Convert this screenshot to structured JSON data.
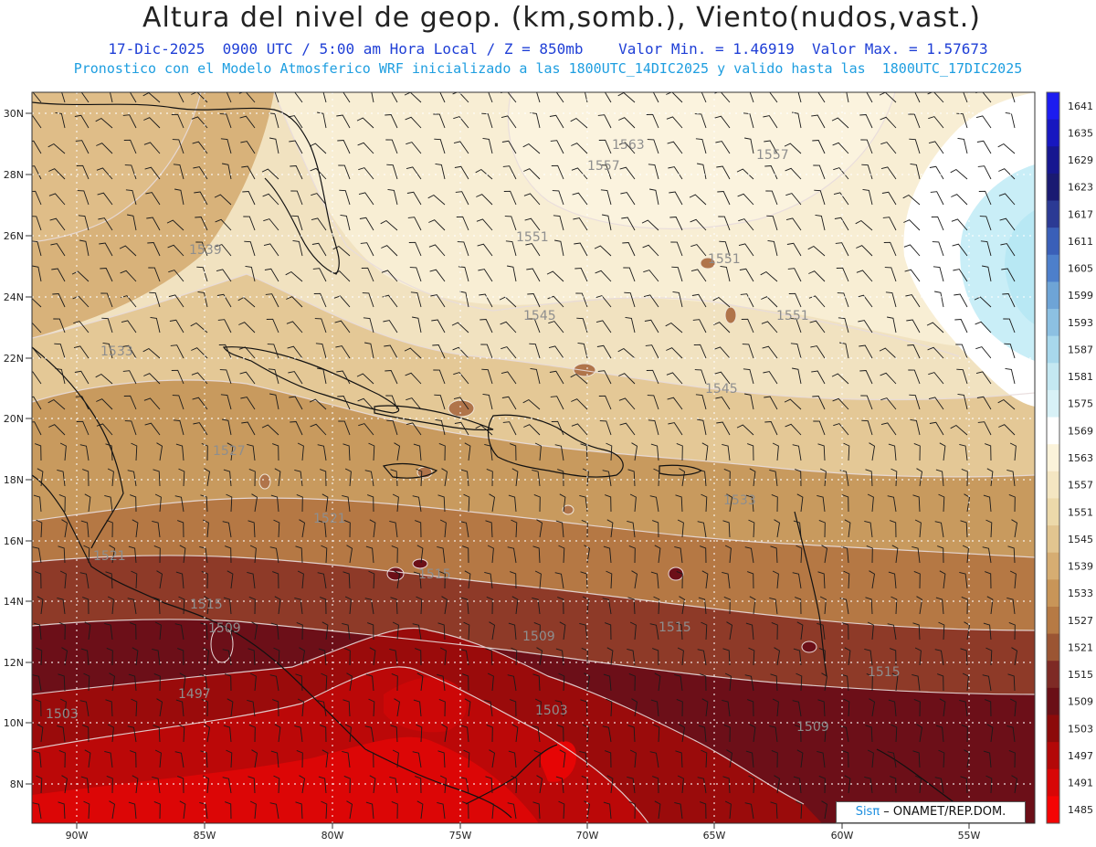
{
  "title": "Altura del nivel de geop. (km,somb.), Viento(nudos,vast.)",
  "subtitle1": "17-Dic-2025  0900 UTC / 5:00 am Hora Local / Z = 850mb    Valor Min. = 1.46919  Valor Max. = 1.57673",
  "subtitle2": "Pronostico con el Modelo Atmosferico WRF inicializado a las 1800UTC_14DIC2025 y valido hasta las  1800UTC_17DIC2025",
  "credit": {
    "sis": "Sisπ",
    "rest": " – ONAMET/REP.DOM."
  },
  "lat_labels": [
    "30N",
    "28N",
    "26N",
    "24N",
    "22N",
    "20N",
    "18N",
    "16N",
    "14N",
    "12N",
    "10N",
    "8N"
  ],
  "lon_labels": [
    "90W",
    "85W",
    "80W",
    "75W",
    "70W",
    "65W",
    "60W",
    "55W"
  ],
  "colorbar": {
    "levels": [
      "1641",
      "1635",
      "1629",
      "1623",
      "1617",
      "1611",
      "1605",
      "1599",
      "1593",
      "1587",
      "1581",
      "1575",
      "1569",
      "1563",
      "1557",
      "1551",
      "1545",
      "1539",
      "1533",
      "1527",
      "1521",
      "1515",
      "1509",
      "1503",
      "1497",
      "1491",
      "1485"
    ],
    "colors": [
      "#1c1cf0",
      "#1717c0",
      "#161690",
      "#1a1a72",
      "#2b3a94",
      "#3a5fb8",
      "#4d7fcb",
      "#6ea4d6",
      "#8cc0e2",
      "#a8d8ec",
      "#c4e8f2",
      "#d8f1f7",
      "#ffffff",
      "#fbf3da",
      "#f4e6c2",
      "#ecd9aa",
      "#e2c590",
      "#d6ad72",
      "#c89558",
      "#b67a44",
      "#9b5533",
      "#7e2a25",
      "#6a0f16",
      "#8c0a0a",
      "#b30808",
      "#d80606",
      "#f40404"
    ]
  },
  "contour_labels": [
    {
      "text": "1563"
    },
    {
      "text": "1557"
    },
    {
      "text": "1557"
    },
    {
      "text": "1551"
    },
    {
      "text": "1551"
    },
    {
      "text": "1551"
    },
    {
      "text": "1545"
    },
    {
      "text": "1545"
    },
    {
      "text": "1539"
    },
    {
      "text": "1533"
    },
    {
      "text": "1533"
    },
    {
      "text": "1527"
    },
    {
      "text": "1521"
    },
    {
      "text": "1521"
    },
    {
      "text": "1515"
    },
    {
      "text": "1515"
    },
    {
      "text": "1515"
    },
    {
      "text": "1515"
    },
    {
      "text": "1509"
    },
    {
      "text": "1509"
    },
    {
      "text": "1509"
    },
    {
      "text": "1503"
    },
    {
      "text": "1503"
    },
    {
      "text": "1497"
    }
  ]
}
